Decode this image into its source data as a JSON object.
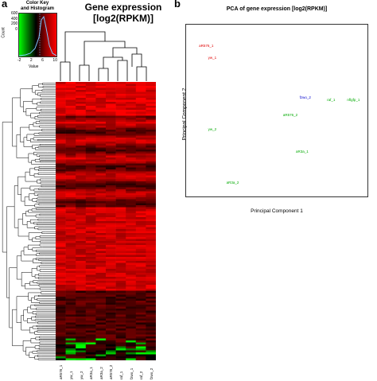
{
  "panel_a": {
    "letter": "a",
    "title_line1": "Gene expression",
    "title_line2": "[log2(RPKM)]",
    "color_key": {
      "title_line1": "Color Key",
      "title_line2": "and Histogram",
      "ylabel": "Count",
      "xlabel": "Value",
      "x_ticks": [
        "-2",
        "2",
        "6",
        "10"
      ],
      "y_ticks": [
        "0",
        "200",
        "400",
        "600"
      ],
      "colors": [
        "#00ff00",
        "#000000",
        "#ff0000"
      ]
    },
    "heatmap": {
      "columns": [
        "aR576_1",
        "yw_1",
        "yw_2",
        "aR3a_1",
        "aR3a_2",
        "aR576_2",
        "raf_1",
        "fzwo_1",
        "raf_2",
        "fzwo_2"
      ]
    }
  },
  "panel_b": {
    "letter": "b",
    "chart_data": {
      "type": "scatter",
      "title": "PCA of gene expression [log2(RPKM)]",
      "xlabel": "Principal Component 1",
      "ylabel": "Principal Component 2",
      "points": [
        {
          "label": "aR576_1",
          "x": 0.07,
          "y": 0.89,
          "color": "#e00000"
        },
        {
          "label": "yw_1",
          "x": 0.12,
          "y": 0.82,
          "color": "#e00000"
        },
        {
          "label": "fzwo_2",
          "x": 0.62,
          "y": 0.59,
          "color": "#0000cc"
        },
        {
          "label": "raf_1",
          "x": 0.77,
          "y": 0.58,
          "color": "#00aa00"
        },
        {
          "label": "nflgfp_1",
          "x": 0.88,
          "y": 0.58,
          "color": "#00aa00"
        },
        {
          "label": "aR576_2",
          "x": 0.53,
          "y": 0.49,
          "color": "#00aa00"
        },
        {
          "label": "yw_2",
          "x": 0.12,
          "y": 0.41,
          "color": "#00aa00"
        },
        {
          "label": "aR3a_1",
          "x": 0.6,
          "y": 0.28,
          "color": "#00aa00"
        },
        {
          "label": "aR3a_2",
          "x": 0.22,
          "y": 0.1,
          "color": "#00aa00"
        }
      ]
    }
  }
}
